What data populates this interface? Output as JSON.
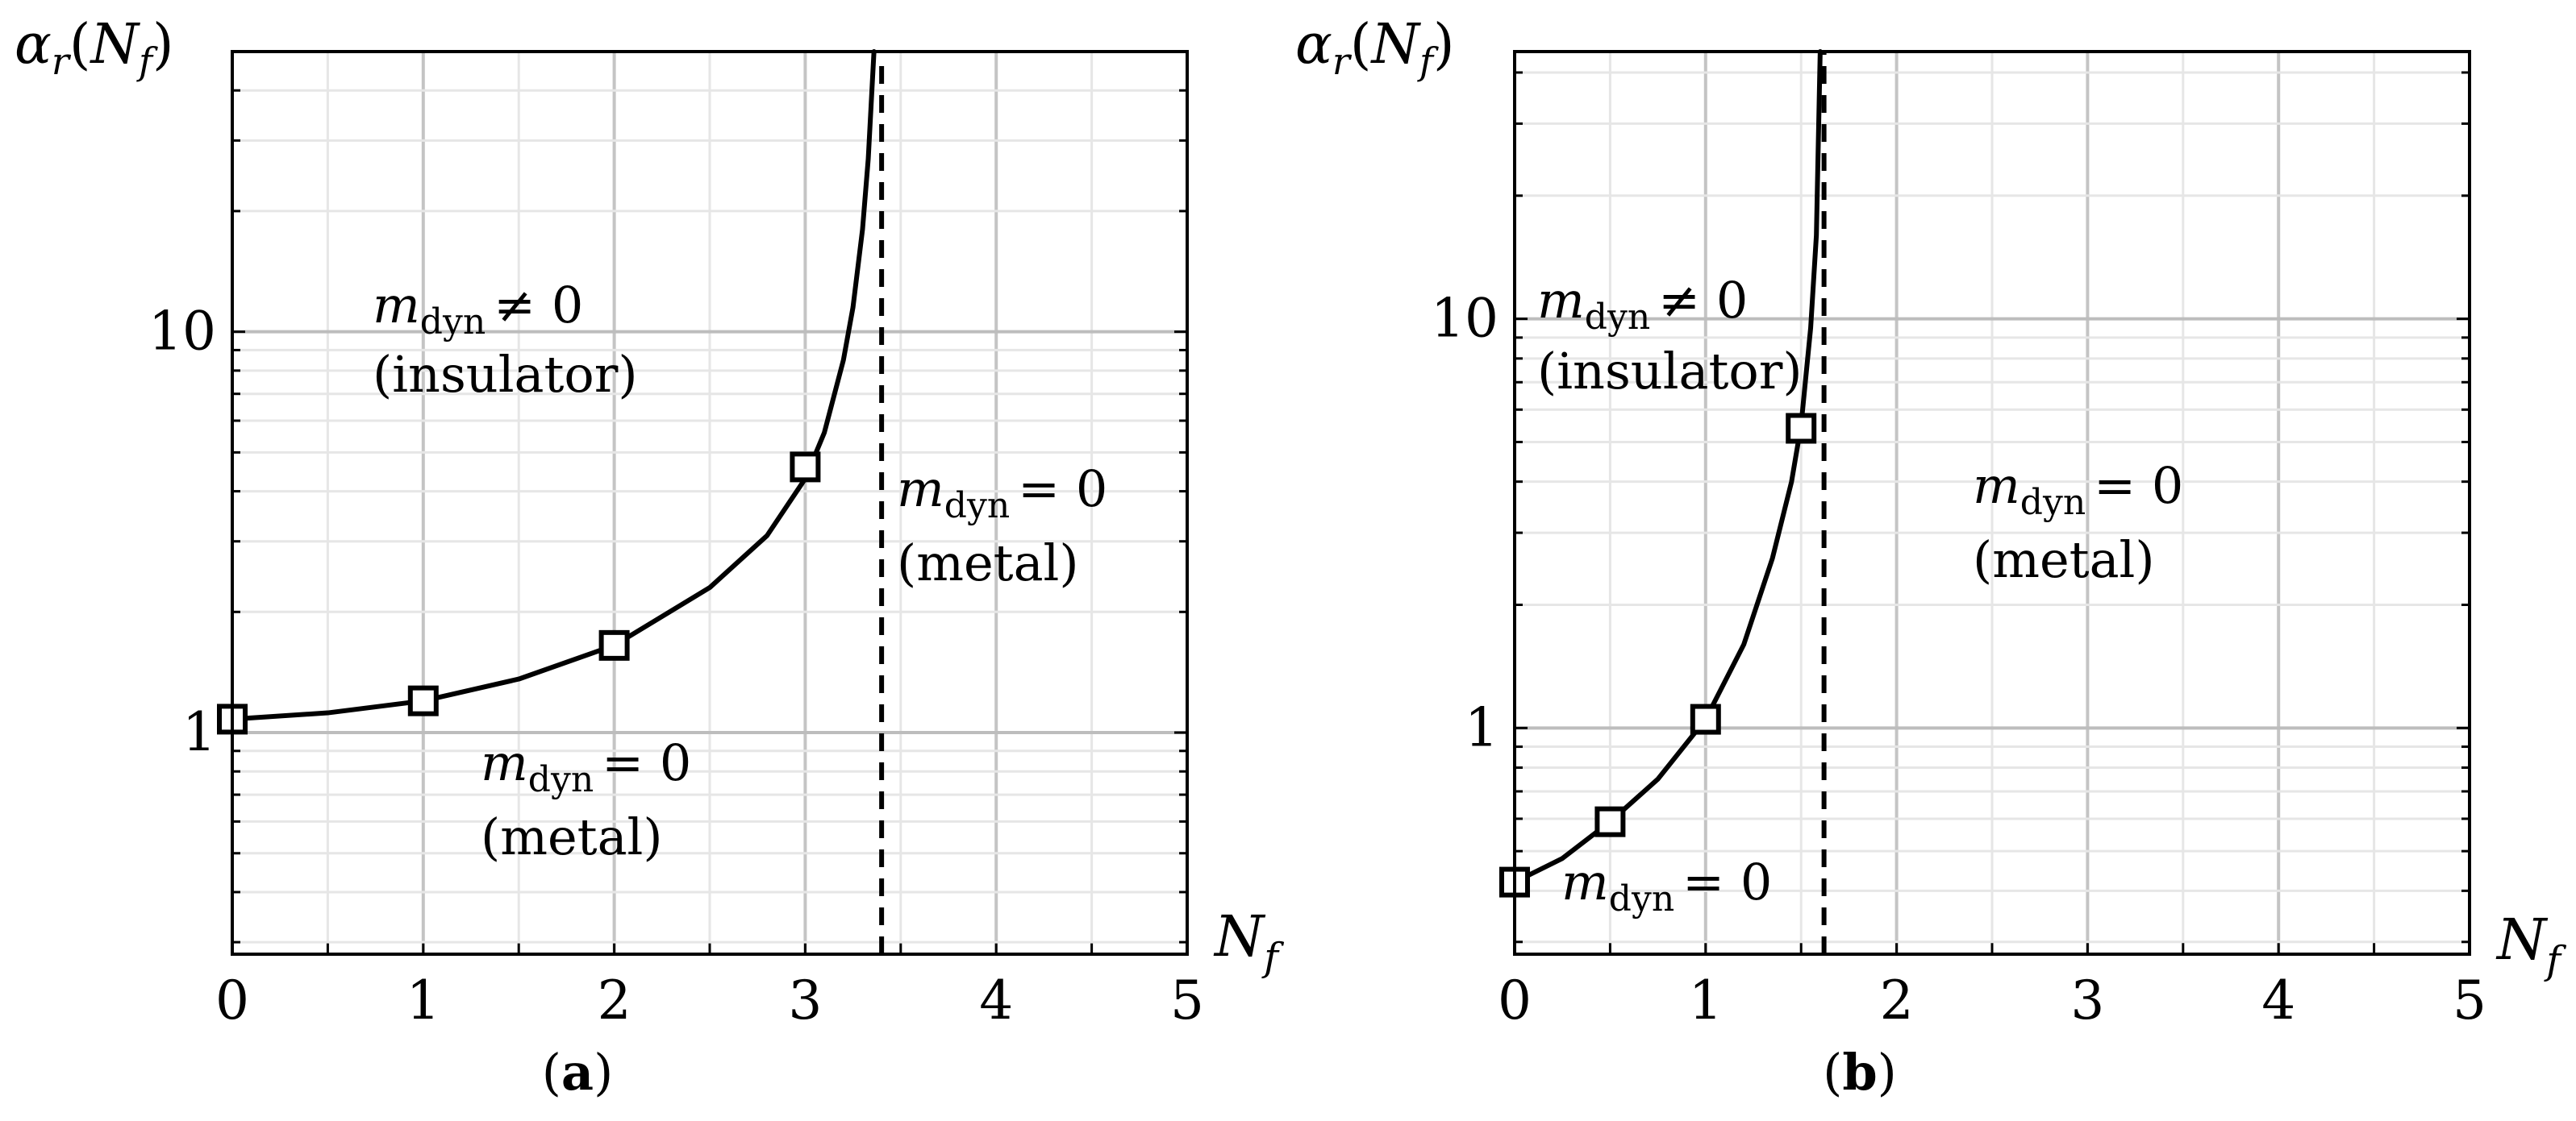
{
  "chart_data": [
    {
      "type": "line",
      "panel_label": "a",
      "ylabel_main": "α",
      "ylabel_sub": "r",
      "ylabel_arg_main": "N",
      "ylabel_arg_sub": "f",
      "xlabel_main": "N",
      "xlabel_sub": "f",
      "y_scale": "log",
      "xlim": [
        0,
        5
      ],
      "ylim": [
        0.28,
        50
      ],
      "grid": true,
      "x_ticks": [
        "0",
        "1",
        "2",
        "3",
        "4",
        "5"
      ],
      "y_ticks": [
        "1",
        "10"
      ],
      "series": [
        {
          "style": "solid-line",
          "x": [
            0,
            0.5,
            1,
            1.5,
            2,
            2.5,
            2.8,
            3,
            3.1,
            3.2,
            3.25,
            3.3,
            3.33,
            3.36
          ],
          "y": [
            1.08,
            1.12,
            1.2,
            1.36,
            1.65,
            2.3,
            3.1,
            4.3,
            5.6,
            8.5,
            11.5,
            18,
            27,
            50
          ]
        },
        {
          "style": "square-markers",
          "x": [
            0,
            1,
            2,
            3
          ],
          "y": [
            1.08,
            1.2,
            1.65,
            4.6
          ]
        },
        {
          "style": "dashed-vertical",
          "x": [
            3.4,
            3.4
          ],
          "y": [
            0.28,
            46
          ]
        }
      ],
      "annotations": [
        {
          "line1_main": "m",
          "line1_sub": "dyn",
          "line1_rel": "≠ 0",
          "line2": "(insulator)"
        },
        {
          "line1_main": "m",
          "line1_sub": "dyn",
          "line1_rel": "= 0",
          "line2": "(metal)"
        },
        {
          "line1_main": "m",
          "line1_sub": "dyn",
          "line1_rel": "= 0",
          "line2": "(metal)"
        }
      ]
    },
    {
      "type": "line",
      "panel_label": "b",
      "ylabel_main": "α",
      "ylabel_sub": "r",
      "ylabel_arg_main": "N",
      "ylabel_arg_sub": "f",
      "xlabel_main": "N",
      "xlabel_sub": "f",
      "y_scale": "log",
      "xlim": [
        0,
        5
      ],
      "ylim": [
        0.28,
        45
      ],
      "grid": true,
      "x_ticks": [
        "0",
        "1",
        "2",
        "3",
        "4",
        "5"
      ],
      "y_ticks": [
        "1",
        "10"
      ],
      "series": [
        {
          "style": "solid-line",
          "x": [
            0,
            0.25,
            0.5,
            0.75,
            1,
            1.2,
            1.35,
            1.45,
            1.5,
            1.55,
            1.58,
            1.6
          ],
          "y": [
            0.42,
            0.48,
            0.59,
            0.75,
            1.05,
            1.6,
            2.6,
            4.0,
            5.5,
            9.5,
            16,
            45
          ]
        },
        {
          "style": "square-markers",
          "x": [
            0,
            0.5,
            1,
            1.5
          ],
          "y": [
            0.42,
            0.59,
            1.05,
            5.4
          ]
        },
        {
          "style": "dashed-vertical",
          "x": [
            1.62,
            1.62
          ],
          "y": [
            0.28,
            45
          ]
        }
      ],
      "annotations": [
        {
          "line1_main": "m",
          "line1_sub": "dyn",
          "line1_rel": "≠ 0",
          "line2": "(insulator)"
        },
        {
          "line1_main": "m",
          "line1_sub": "dyn",
          "line1_rel": "= 0",
          "line2": ""
        },
        {
          "line1_main": "m",
          "line1_sub": "dyn",
          "line1_rel": "= 0",
          "line2": "(metal)"
        }
      ]
    }
  ]
}
